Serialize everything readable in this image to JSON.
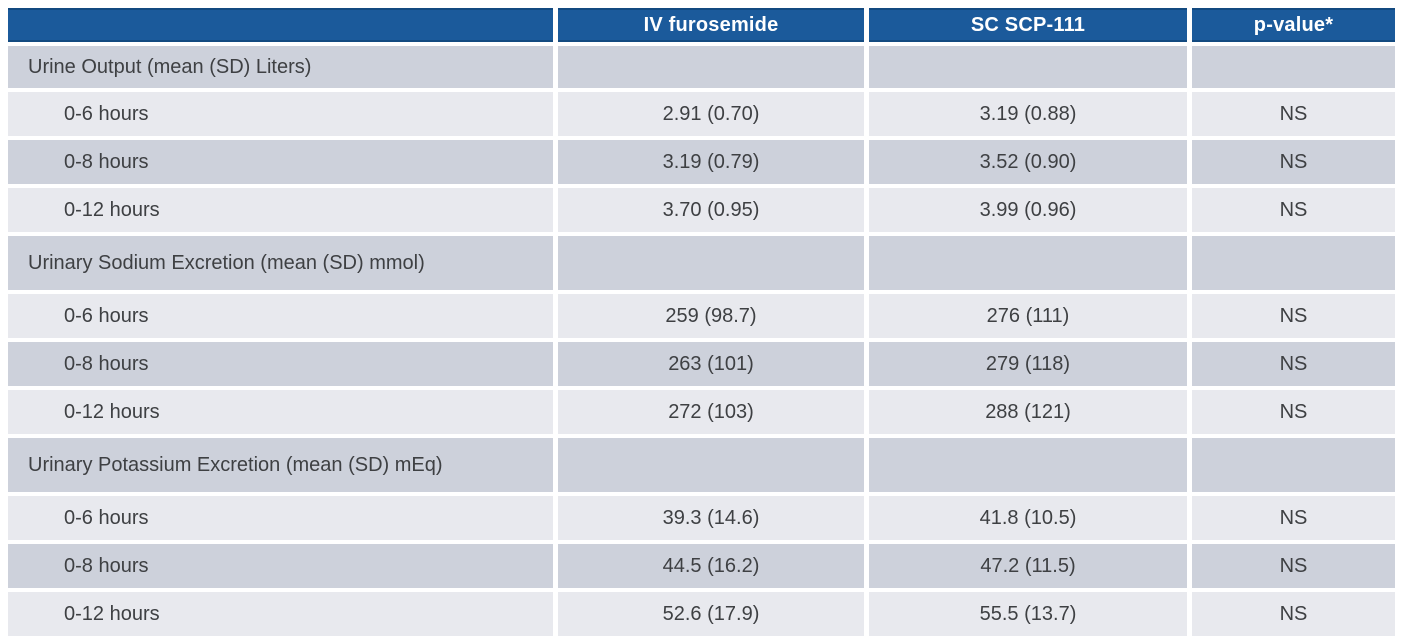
{
  "table": {
    "columns": [
      "",
      "IV furosemide",
      "SC SCP-111",
      "p-value*"
    ],
    "rows": [
      {
        "type": "section",
        "label": "Urine Output (mean (SD) Liters)",
        "values": [
          "",
          "",
          ""
        ]
      },
      {
        "type": "data",
        "label": "0-6 hours",
        "values": [
          "2.91 (0.70)",
          "3.19 (0.88)",
          "NS"
        ]
      },
      {
        "type": "data",
        "label": "0-8 hours",
        "values": [
          "3.19 (0.79)",
          "3.52 (0.90)",
          "NS"
        ]
      },
      {
        "type": "data",
        "label": "0-12 hours",
        "values": [
          "3.70 (0.95)",
          "3.99 (0.96)",
          "NS"
        ]
      },
      {
        "type": "section",
        "label": "Urinary Sodium Excretion (mean (SD) mmol)",
        "values": [
          "",
          "",
          ""
        ]
      },
      {
        "type": "data",
        "label": "0-6 hours",
        "values": [
          "259 (98.7)",
          "276 (111)",
          "NS"
        ]
      },
      {
        "type": "data",
        "label": "0-8 hours",
        "values": [
          "263 (101)",
          "279 (118)",
          "NS"
        ]
      },
      {
        "type": "data",
        "label": "0-12 hours",
        "values": [
          "272 (103)",
          "288 (121)",
          "NS"
        ]
      },
      {
        "type": "section",
        "label": "Urinary Potassium Excretion (mean (SD) mEq)",
        "values": [
          "",
          "",
          ""
        ]
      },
      {
        "type": "data",
        "label": "0-6 hours",
        "values": [
          "39.3 (14.6)",
          "41.8 (10.5)",
          "NS"
        ]
      },
      {
        "type": "data",
        "label": "0-8 hours",
        "values": [
          "44.5 (16.2)",
          "47.2 (11.5)",
          "NS"
        ]
      },
      {
        "type": "data",
        "label": "0-12 hours",
        "values": [
          "52.6 (17.9)",
          "55.5 (13.7)",
          "NS"
        ]
      }
    ]
  },
  "colors": {
    "header_bg": "#1b5a9b",
    "header_edge": "#134a80",
    "header_text": "#ffffff",
    "section_row_bg": "#cdd1db",
    "band_dark_bg": "#cdd1db",
    "band_light_bg": "#e8e9ee",
    "body_text": "#3e4043",
    "page_bg": "#ffffff"
  }
}
